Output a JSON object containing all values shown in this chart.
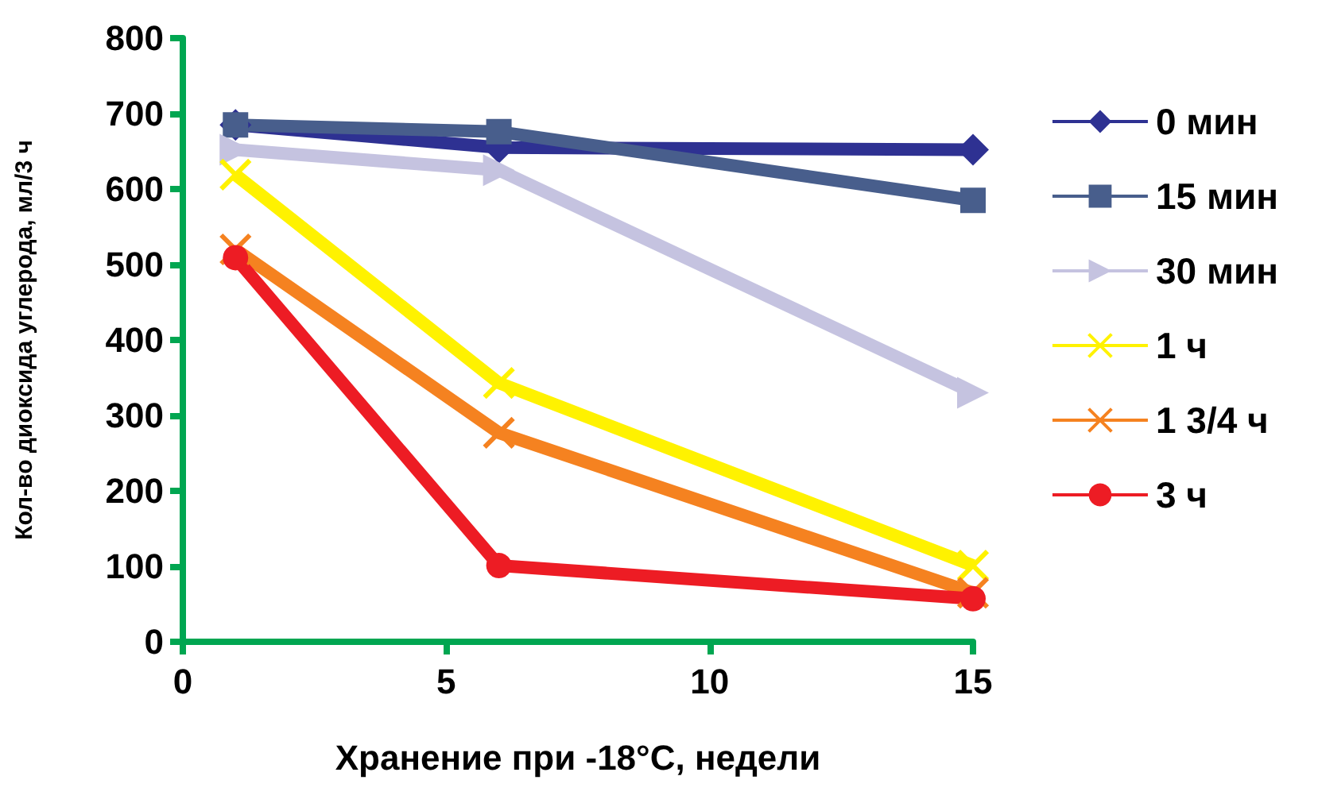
{
  "chart_data": {
    "type": "line",
    "xlabel": "Хранение при -18°C, недели",
    "ylabel": "Кол-во диоксида углерода, мл/3 ч",
    "x": [
      1,
      6,
      15
    ],
    "xlim": [
      0,
      15
    ],
    "xticks": [
      0,
      5,
      10,
      15
    ],
    "ylim": [
      0,
      800
    ],
    "yticks": [
      0,
      100,
      200,
      300,
      400,
      500,
      600,
      700,
      800
    ],
    "grid": false,
    "legend": "right",
    "line_style": "solid",
    "series": [
      {
        "name": "0 мин",
        "color": "#2e3192",
        "marker": "diamond",
        "values": [
          685,
          655,
          652
        ]
      },
      {
        "name": "15 мин",
        "color": "#485e8c",
        "marker": "square",
        "values": [
          685,
          676,
          585
        ]
      },
      {
        "name": "30 мин",
        "color": "#c5c3e0",
        "marker": "triangle",
        "values": [
          652,
          625,
          330
        ]
      },
      {
        "name": "1 ч",
        "color": "#fff200",
        "marker": "cross",
        "values": [
          619,
          343,
          101
        ]
      },
      {
        "name": "1 3/4 ч",
        "color": "#f58220",
        "marker": "cross",
        "values": [
          520,
          277,
          65
        ]
      },
      {
        "name": "3 ч",
        "color": "#ed1c24",
        "marker": "circle",
        "values": [
          509,
          101,
          57
        ]
      }
    ]
  }
}
